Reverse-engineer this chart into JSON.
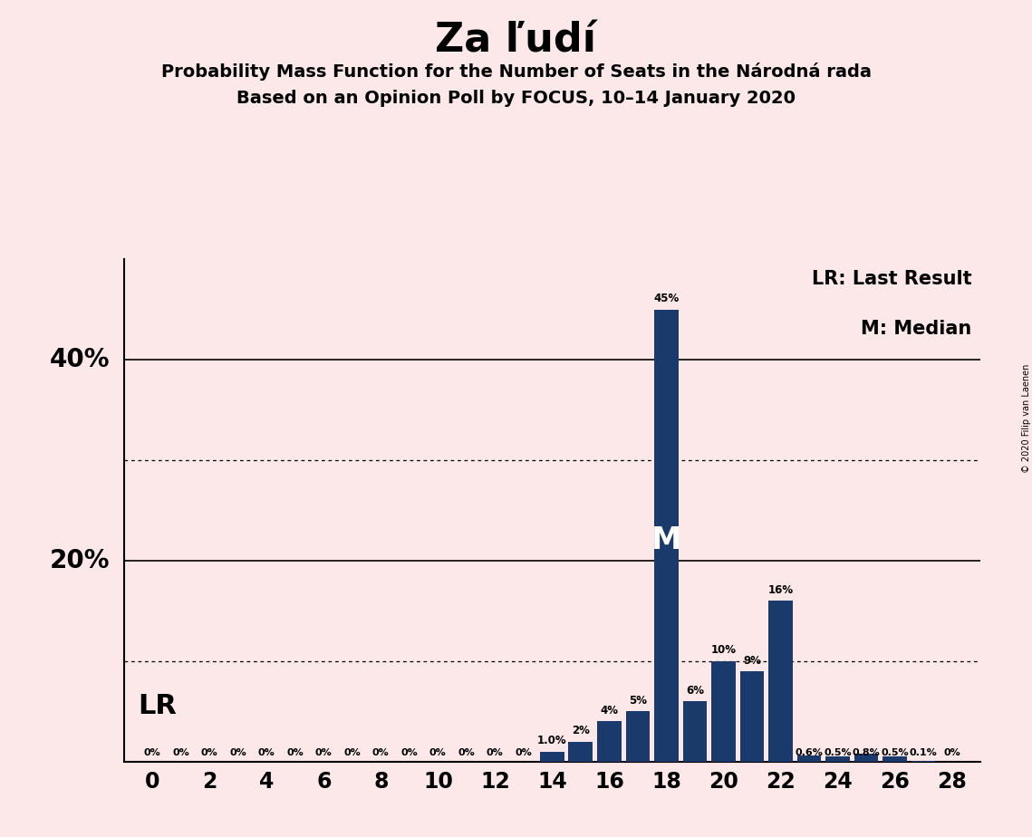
{
  "title": "Za ľudí",
  "subtitle1": "Probability Mass Function for the Number of Seats in the Národná rada",
  "subtitle2": "Based on an Opinion Poll by FOCUS, 10–14 January 2020",
  "copyright": "© 2020 Filip van Laenen",
  "bar_color": "#1a3a6b",
  "background_color": "#fce8e8",
  "seats": [
    0,
    1,
    2,
    3,
    4,
    5,
    6,
    7,
    8,
    9,
    10,
    11,
    12,
    13,
    14,
    15,
    16,
    17,
    18,
    19,
    20,
    21,
    22,
    23,
    24,
    25,
    26,
    27,
    28
  ],
  "values": [
    0,
    0,
    0,
    0,
    0,
    0,
    0,
    0,
    0,
    0,
    0,
    0,
    0,
    0,
    1.0,
    2,
    4,
    5,
    45,
    6,
    10,
    9,
    16,
    0.6,
    0.5,
    0.8,
    0.5,
    0.1,
    0
  ],
  "labels": [
    "0%",
    "0%",
    "0%",
    "0%",
    "0%",
    "0%",
    "0%",
    "0%",
    "0%",
    "0%",
    "0%",
    "0%",
    "0%",
    "0%",
    "1.0%",
    "2%",
    "4%",
    "5%",
    "45%",
    "6%",
    "10%",
    "9%",
    "16%",
    "0.6%",
    "0.5%",
    "0.8%",
    "0.5%",
    "0.1%",
    "0%"
  ],
  "xticks": [
    0,
    2,
    4,
    6,
    8,
    10,
    12,
    14,
    16,
    18,
    20,
    22,
    24,
    26,
    28
  ],
  "ylim": [
    0,
    50
  ],
  "solid_gridlines": [
    20,
    40
  ],
  "dotted_gridlines": [
    10,
    30
  ],
  "median_seat": 18,
  "median_label": "M",
  "lr_label": "LR",
  "lr_legend": "LR: Last Result",
  "m_legend": "M: Median",
  "ylabel_20": "20%",
  "ylabel_40": "40%"
}
